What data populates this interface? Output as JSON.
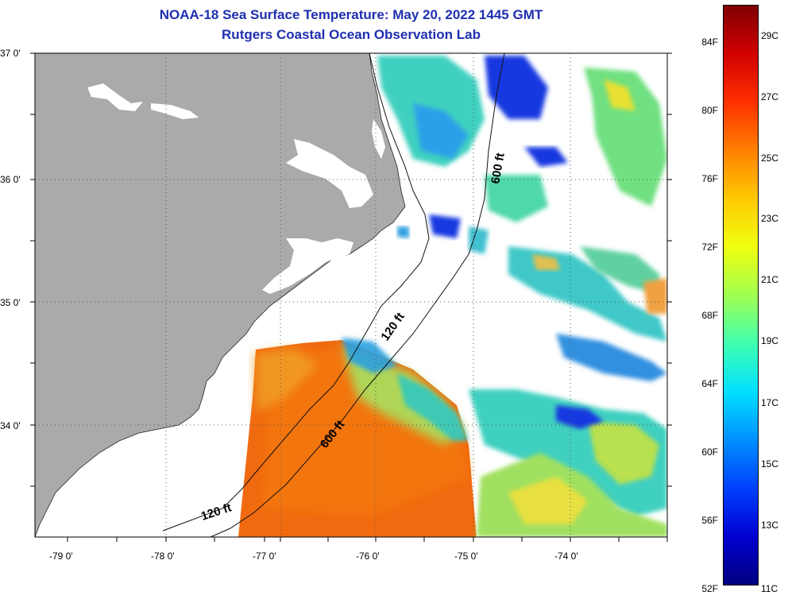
{
  "title": {
    "line1": "NOAA-18 Sea Surface Temperature:  May 20, 2022 1445 GMT",
    "line2": "Rutgers Coastal Ocean Observation Lab"
  },
  "axes": {
    "lat_labels": [
      "37 0'",
      "36 0'",
      "35 0'",
      "34 0'"
    ],
    "lon_labels": [
      "-79 0'",
      "-78 0'",
      "-77 0'",
      "-76 0'",
      "-75 0'",
      "-74 0'"
    ]
  },
  "contours": {
    "labels": [
      "600 ft",
      "120 ft",
      "600 ft",
      "120 ft"
    ]
  },
  "colorbar": {
    "fahrenheit": [
      "84F",
      "80F",
      "76F",
      "72F",
      "68F",
      "64F",
      "60F",
      "56F",
      "52F"
    ],
    "celsius": [
      "29C",
      "27C",
      "25C",
      "23C",
      "21C",
      "19C",
      "17C",
      "15C",
      "13C",
      "11C"
    ],
    "colors": [
      "#800000",
      "#d00000",
      "#ff3000",
      "#ff8000",
      "#ffc800",
      "#f0ff10",
      "#a0ff50",
      "#40ffb0",
      "#00e0ff",
      "#0090ff",
      "#0040ff",
      "#0000d0",
      "#000080"
    ]
  },
  "colors": {
    "land": "#aaaaaa",
    "water_nodata": "#ffffff",
    "title": "#1f2fb0",
    "warm_sst": "#f06a10",
    "cool_sst": "#30c8c0"
  }
}
